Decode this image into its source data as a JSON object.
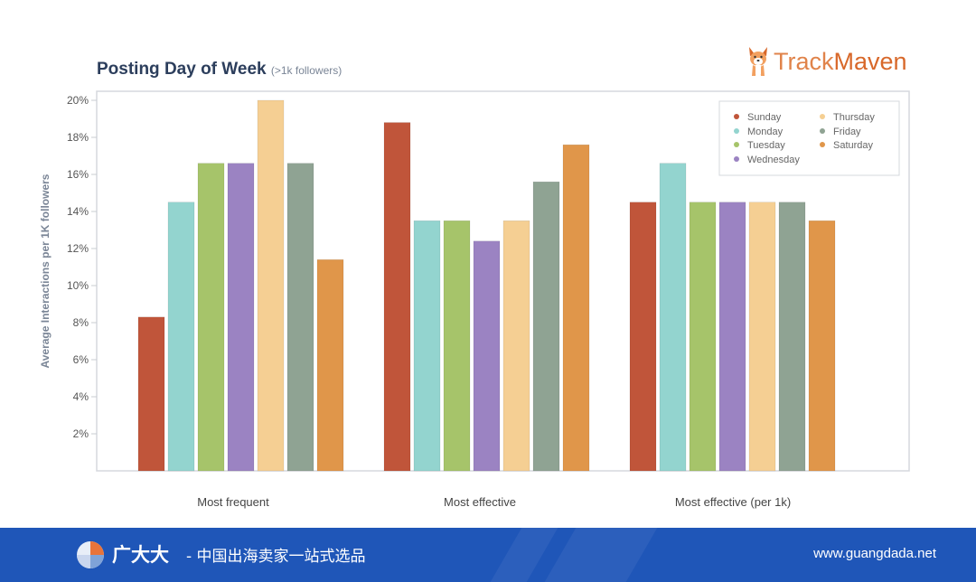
{
  "title": "Posting Day of Week",
  "subtitle": "(>1k followers)",
  "logo": {
    "part1": "Track",
    "part2": "Maven",
    "icon": "corgi-dog-icon"
  },
  "footer": {
    "brand": "广大大",
    "slogan": "- 中国出海卖家一站式选品",
    "url": "www.guangdada.net",
    "logo_icon": "pie-globe-icon",
    "bg_color": "#1f56b8"
  },
  "chart_data": {
    "type": "bar",
    "ylabel": "Average Interactions per 1K followers",
    "xlabel": "",
    "ylim": [
      0,
      20
    ],
    "yticks": [
      "2%",
      "4%",
      "6%",
      "8%",
      "10%",
      "12%",
      "14%",
      "16%",
      "18%",
      "20%"
    ],
    "categories": [
      "Most frequent",
      "Most effective",
      "Most effective (per 1k)"
    ],
    "legend_position": "top-right",
    "grid": false,
    "series": [
      {
        "name": "Sunday",
        "color": "#c0553a",
        "values": [
          8.3,
          18.8,
          14.5
        ]
      },
      {
        "name": "Monday",
        "color": "#93d4cf",
        "values": [
          14.5,
          13.5,
          16.6
        ]
      },
      {
        "name": "Tuesday",
        "color": "#a6c46a",
        "values": [
          16.6,
          13.5,
          14.5
        ]
      },
      {
        "name": "Wednesday",
        "color": "#9b83c2",
        "values": [
          16.6,
          12.4,
          14.5
        ]
      },
      {
        "name": "Thursday",
        "color": "#f5cf93",
        "values": [
          20.0,
          13.5,
          14.5
        ]
      },
      {
        "name": "Friday",
        "color": "#8fa393",
        "values": [
          16.6,
          15.6,
          14.5
        ]
      },
      {
        "name": "Saturday",
        "color": "#e0964a",
        "values": [
          11.4,
          17.6,
          13.5
        ]
      }
    ]
  }
}
